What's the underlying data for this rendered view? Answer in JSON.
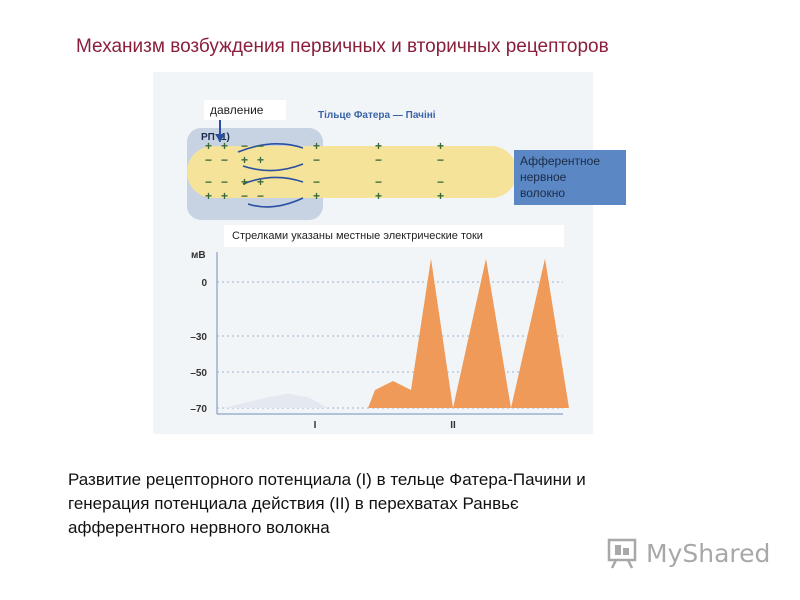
{
  "slide": {
    "title": "Механизм возбуждения первичных и вторичных рецепторов",
    "caption_lines": [
      "Развитие рецепторного потенциала (I) в тельце Фатера-Пачини и",
      "генерация потенциала действия (II) в перехватах Ранвьє",
      "афферентного нервного волокна"
    ]
  },
  "figure": {
    "pressure_label": "давление",
    "corpuscle_title": "Тільце Фатера — Пачіні",
    "rp_label": "РП (1)",
    "afferent_label_lines": [
      "Афферентное",
      "нервное",
      "волокно"
    ],
    "currents_note": "Стрелками указаны местные электрические токи",
    "charge_rows": [
      [
        "+",
        "+",
        "−",
        "−",
        "+",
        "+",
        "+"
      ],
      [
        "−",
        "−",
        "+",
        "+",
        "−",
        "−",
        "−"
      ],
      [
        "−",
        "−",
        "+",
        "+",
        "−",
        "−",
        "−"
      ],
      [
        "+",
        "+",
        "−",
        "−",
        "+",
        "+",
        "+"
      ]
    ],
    "colors": {
      "fiber": "#f6e39a",
      "capsule": "#c7d3e2",
      "receptor_potential": "#e3e8f1",
      "action_potential": "#ef9a58",
      "charges": "#3a6a3a",
      "arrows": "#2b4fa0",
      "title_blue": "#3b63a8",
      "brand": "#a8a8a8"
    }
  },
  "chart_data": {
    "type": "area",
    "ylabel": "мВ",
    "yticks": [
      0,
      -30,
      -50,
      -70
    ],
    "ylim": [
      -75,
      15
    ],
    "xticks": [
      "I",
      "II"
    ],
    "series": [
      {
        "name": "I",
        "points": [
          [
            0,
            -70
          ],
          [
            45,
            -64
          ],
          [
            65,
            -62
          ],
          [
            85,
            -64
          ],
          [
            105,
            -70
          ]
        ]
      },
      {
        "name": "II",
        "points": [
          [
            145,
            -70
          ],
          [
            152,
            -60
          ],
          [
            170,
            -55
          ],
          [
            188,
            -60
          ],
          [
            208,
            13
          ],
          [
            230,
            -70
          ],
          [
            263,
            13
          ],
          [
            288,
            -70
          ],
          [
            322,
            13
          ],
          [
            346,
            -70
          ]
        ]
      }
    ]
  },
  "brand": {
    "name": "MyShared"
  }
}
